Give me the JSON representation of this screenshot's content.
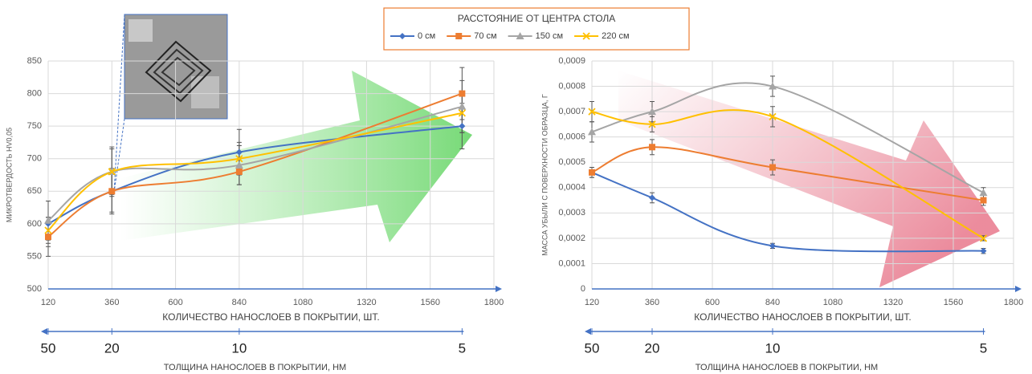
{
  "chart_data": [
    {
      "type": "line",
      "legend_title": "РАССТОЯНИЕ ОТ ЦЕНТРА СТОЛА",
      "ylabel": "МИКРОТВЕРДОСТЬ HV0,05",
      "xlabel": "КОЛИЧЕСТВО НАНОСЛОЕВ В ПОКРЫТИИ, ШТ.",
      "x2label": "ТОЛЩИНА НАНОСЛОЕВ В ПОКРЫТИИ, НМ",
      "x2categories": [
        "50",
        "20",
        "10",
        "5"
      ],
      "x": [
        120,
        360,
        840,
        1680
      ],
      "xlim": [
        120,
        1800
      ],
      "xticks": [
        120,
        360,
        600,
        840,
        1080,
        1320,
        1560,
        1800
      ],
      "ylim": [
        500,
        850
      ],
      "yticks": [
        500,
        550,
        600,
        650,
        700,
        750,
        800,
        850
      ],
      "grid": true,
      "series": [
        {
          "name": "0 см",
          "color": "#4472c4",
          "marker": "diamond",
          "values": [
            600,
            650,
            710,
            750
          ],
          "errors": [
            35,
            35,
            35,
            35
          ]
        },
        {
          "name": "70 см",
          "color": "#ed7d31",
          "marker": "square",
          "values": [
            580,
            650,
            680,
            800
          ],
          "errors": [
            30,
            32,
            20,
            40
          ]
        },
        {
          "name": "150 см",
          "color": "#a5a5a5",
          "marker": "triangle",
          "values": [
            605,
            680,
            690,
            780
          ],
          "errors": [
            30,
            38,
            30,
            40
          ]
        },
        {
          "name": "220 см",
          "color": "#ffc000",
          "marker": "x",
          "values": [
            590,
            680,
            700,
            770
          ],
          "errors": [
            20,
            35,
            25,
            30
          ]
        }
      ]
    },
    {
      "type": "line",
      "ylabel": "МАССА УБЫЛИ С ПОВЕРХНОСТИ ОБРАЗЦА, Г",
      "xlabel": "КОЛИЧЕСТВО НАНОСЛОЕВ В ПОКРЫТИИ, ШТ.",
      "x2label": "ТОЛЩИНА НАНОСЛОЕВ В ПОКРЫТИИ, НМ",
      "x2categories": [
        "50",
        "20",
        "10",
        "5"
      ],
      "x": [
        120,
        360,
        840,
        1680
      ],
      "xlim": [
        120,
        1800
      ],
      "xticks": [
        120,
        360,
        600,
        840,
        1080,
        1320,
        1560,
        1800
      ],
      "ylim": [
        0,
        0.0009
      ],
      "yticks": [
        0,
        {
          "value": 0.0001,
          "label": "0,0001"
        },
        {
          "value": 0.0002,
          "label": "0,0002"
        },
        {
          "value": 0.0003,
          "label": "0,0003"
        },
        {
          "value": 0.0004,
          "label": "0,0004"
        },
        {
          "value": 0.0005,
          "label": "0,0005"
        },
        {
          "value": 0.0006,
          "label": "0,0006"
        },
        {
          "value": 0.0007,
          "label": "0,0007"
        },
        {
          "value": 0.0008,
          "label": "0,0008"
        },
        {
          "value": 0.0009,
          "label": "0,0009"
        }
      ],
      "grid": true,
      "series": [
        {
          "name": "0 см",
          "color": "#4472c4",
          "marker": "diamond",
          "values": [
            0.00046,
            0.00036,
            0.00017,
            0.00015
          ],
          "errors": [
            2e-05,
            2e-05,
            1e-05,
            1e-05
          ]
        },
        {
          "name": "70 см",
          "color": "#ed7d31",
          "marker": "square",
          "values": [
            0.00046,
            0.00056,
            0.00048,
            0.00035
          ],
          "errors": [
            2e-05,
            3e-05,
            3e-05,
            2e-05
          ]
        },
        {
          "name": "150 см",
          "color": "#a5a5a5",
          "marker": "triangle",
          "values": [
            0.00062,
            0.0007,
            0.0008,
            0.00038
          ],
          "errors": [
            4e-05,
            4e-05,
            4e-05,
            2e-05
          ]
        },
        {
          "name": "220 см",
          "color": "#ffc000",
          "marker": "x",
          "values": [
            0.0007,
            0.00065,
            0.00068,
            0.0002
          ],
          "errors": [
            4e-05,
            3e-05,
            4e-05,
            1e-05
          ]
        }
      ]
    }
  ]
}
